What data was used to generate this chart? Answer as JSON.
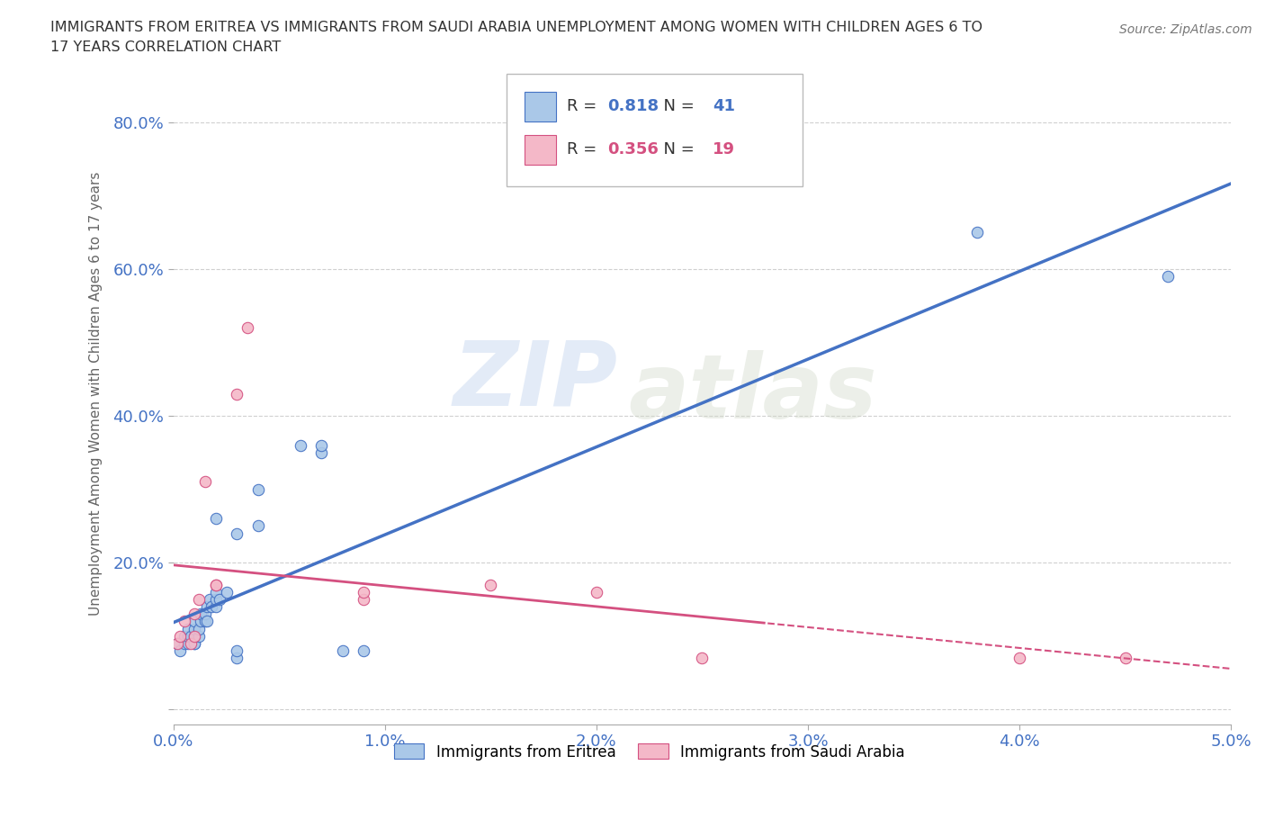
{
  "title_line1": "IMMIGRANTS FROM ERITREA VS IMMIGRANTS FROM SAUDI ARABIA UNEMPLOYMENT AMONG WOMEN WITH CHILDREN AGES 6 TO",
  "title_line2": "17 YEARS CORRELATION CHART",
  "source": "Source: ZipAtlas.com",
  "ylabel": "Unemployment Among Women with Children Ages 6 to 17 years",
  "xmin": 0.0,
  "xmax": 0.05,
  "ymin": -0.02,
  "ymax": 0.88,
  "xticks": [
    0.0,
    0.01,
    0.02,
    0.03,
    0.04,
    0.05
  ],
  "xtick_labels": [
    "0.0%",
    "1.0%",
    "2.0%",
    "3.0%",
    "4.0%",
    "5.0%"
  ],
  "yticks": [
    0.0,
    0.2,
    0.4,
    0.6,
    0.8
  ],
  "ytick_labels": [
    "",
    "20.0%",
    "40.0%",
    "60.0%",
    "80.0%"
  ],
  "grid_color": "#d0d0d0",
  "background_color": "#ffffff",
  "series1_name": "Immigrants from Eritrea",
  "series1_R": "0.818",
  "series1_N": "41",
  "series1_color": "#aac8e8",
  "series1_line_color": "#4472c4",
  "series2_name": "Immigrants from Saudi Arabia",
  "series2_R": "0.356",
  "series2_N": "19",
  "series2_color": "#f4b8c8",
  "series2_line_color": "#d45080",
  "watermark_zip": "ZIP",
  "watermark_atlas": "atlas",
  "series1_x": [
    0.0002,
    0.0003,
    0.0005,
    0.0005,
    0.0007,
    0.0007,
    0.0007,
    0.0008,
    0.001,
    0.001,
    0.001,
    0.001,
    0.001,
    0.0012,
    0.0012,
    0.0013,
    0.0013,
    0.0015,
    0.0015,
    0.0016,
    0.0016,
    0.0017,
    0.0018,
    0.002,
    0.002,
    0.002,
    0.002,
    0.0022,
    0.0025,
    0.003,
    0.003,
    0.003,
    0.004,
    0.004,
    0.006,
    0.007,
    0.007,
    0.008,
    0.009,
    0.038,
    0.047
  ],
  "series1_y": [
    0.09,
    0.08,
    0.09,
    0.1,
    0.09,
    0.1,
    0.11,
    0.1,
    0.09,
    0.09,
    0.1,
    0.11,
    0.12,
    0.1,
    0.11,
    0.12,
    0.13,
    0.12,
    0.13,
    0.12,
    0.14,
    0.15,
    0.14,
    0.14,
    0.15,
    0.16,
    0.26,
    0.15,
    0.16,
    0.24,
    0.07,
    0.08,
    0.25,
    0.3,
    0.36,
    0.35,
    0.36,
    0.08,
    0.08,
    0.65,
    0.59
  ],
  "series2_x": [
    0.0002,
    0.0003,
    0.0005,
    0.0008,
    0.001,
    0.001,
    0.0012,
    0.0015,
    0.002,
    0.002,
    0.003,
    0.0035,
    0.009,
    0.009,
    0.015,
    0.02,
    0.025,
    0.04,
    0.045
  ],
  "series2_y": [
    0.09,
    0.1,
    0.12,
    0.09,
    0.1,
    0.13,
    0.15,
    0.31,
    0.17,
    0.17,
    0.43,
    0.52,
    0.15,
    0.16,
    0.17,
    0.16,
    0.07,
    0.07,
    0.07
  ],
  "legend_R_color": "#4472c4",
  "legend_text_color": "#333333"
}
